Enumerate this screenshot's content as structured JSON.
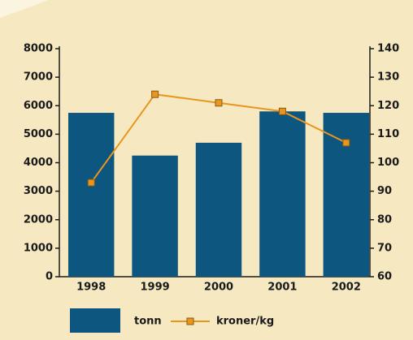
{
  "chart_data": {
    "type": "bar",
    "categories": [
      "1998",
      "1999",
      "2000",
      "2001",
      "2002"
    ],
    "series": [
      {
        "name": "tonn",
        "type": "bar",
        "color": "#0d5680",
        "values": [
          5750,
          4250,
          4700,
          5800,
          5750
        ]
      },
      {
        "name": "kroner/kg",
        "type": "line",
        "axis": "y2",
        "color": "#e8961e",
        "values": [
          93,
          124,
          121,
          118,
          107
        ]
      }
    ],
    "ylim": [
      0,
      8000
    ],
    "yticks": [
      0,
      1000,
      2000,
      3000,
      4000,
      5000,
      6000,
      7000,
      8000
    ],
    "y2lim": [
      60,
      140
    ],
    "y2ticks": [
      60,
      70,
      80,
      90,
      100,
      110,
      120,
      130,
      140
    ],
    "grid": false
  }
}
